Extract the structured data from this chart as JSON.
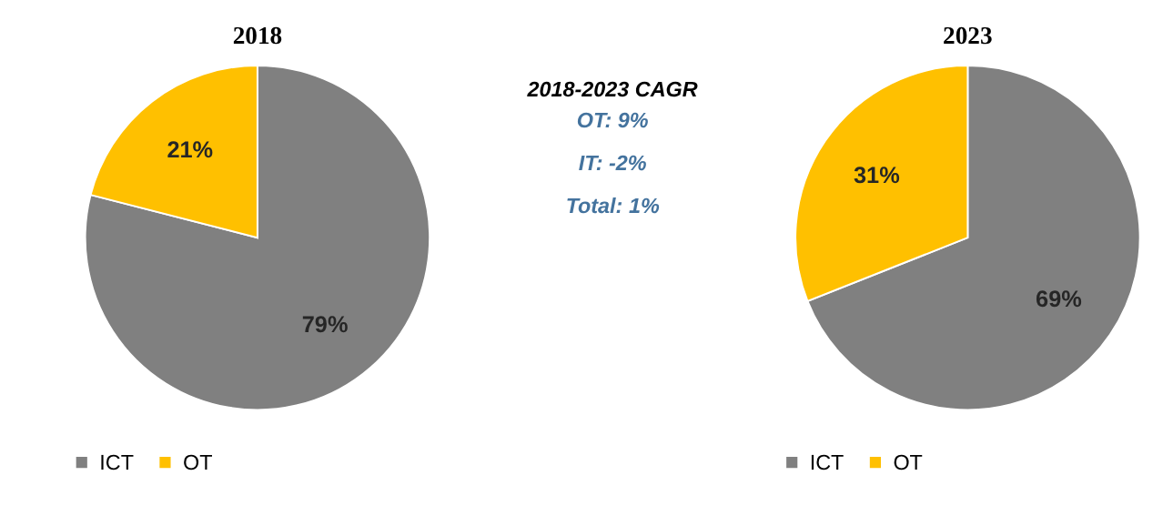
{
  "chart_data": [
    {
      "type": "pie",
      "title": "2018",
      "categories": [
        "ICT",
        "OT"
      ],
      "values": [
        79,
        21
      ],
      "colors": [
        "#808080",
        "#ffc000"
      ],
      "data_labels": true,
      "value_labels": [
        "79%",
        "21%"
      ],
      "legend": "bottom"
    },
    {
      "type": "other",
      "title": "2018-2023 CAGR",
      "annotations": [
        "OT: 9%",
        "IT: -2%",
        "Total: 1%"
      ]
    },
    {
      "type": "pie",
      "title": "2023",
      "categories": [
        "ICT",
        "OT"
      ],
      "values": [
        69,
        31
      ],
      "colors": [
        "#808080",
        "#ffc000"
      ],
      "data_labels": true,
      "value_labels": [
        "69%",
        "31%"
      ],
      "legend": "bottom"
    }
  ]
}
